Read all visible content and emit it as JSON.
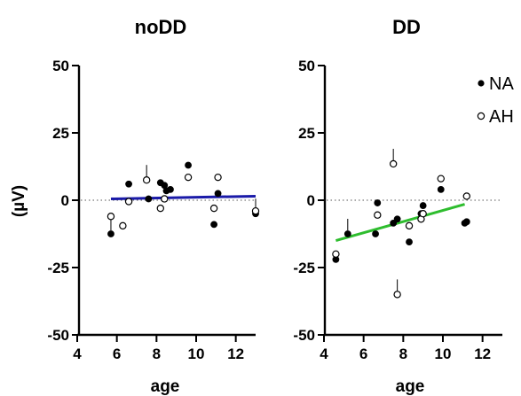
{
  "chart_data": [
    {
      "type": "scatter",
      "title": "noDD",
      "xlabel": "age",
      "ylabel": "(µV)",
      "xlim": [
        4,
        13
      ],
      "ylim": [
        -50,
        50
      ],
      "xticks": [
        4,
        6,
        8,
        10,
        12
      ],
      "yticks": [
        50,
        25,
        0,
        -25,
        -50
      ],
      "reference_line": {
        "y": 0,
        "style": "dotted"
      },
      "grid": false,
      "series": [
        {
          "name": "NA",
          "marker": "filled-circle",
          "color": "#000000",
          "points": [
            [
              5.7,
              -12.5
            ],
            [
              6.6,
              6.0
            ],
            [
              7.6,
              0.5
            ],
            [
              8.2,
              6.5
            ],
            [
              8.4,
              5.5
            ],
            [
              8.5,
              3.5
            ],
            [
              8.7,
              4.0
            ],
            [
              9.6,
              13.0
            ],
            [
              10.9,
              -9.0
            ],
            [
              11.1,
              2.5
            ],
            [
              13.0,
              -5.0
            ]
          ]
        },
        {
          "name": "AH",
          "marker": "open-circle",
          "color": "#000000",
          "points": [
            [
              5.7,
              -6.0
            ],
            [
              6.3,
              -9.5
            ],
            [
              6.6,
              -0.5
            ],
            [
              7.5,
              7.5
            ],
            [
              8.2,
              -3.0
            ],
            [
              8.4,
              0.5
            ],
            [
              9.6,
              8.5
            ],
            [
              10.9,
              -3.0
            ],
            [
              11.1,
              8.5
            ],
            [
              13.0,
              -4.0
            ]
          ]
        }
      ],
      "trendline": {
        "color": "#1a1aa8",
        "x": [
          5.7,
          13.0
        ],
        "y": [
          0.5,
          1.5
        ]
      },
      "error_ticks": [
        [
          5.7,
          -12.5
        ],
        [
          7.5,
          7.5
        ],
        [
          13.0,
          -5.0
        ]
      ]
    },
    {
      "type": "scatter",
      "title": "DD",
      "xlabel": "age",
      "ylabel": "",
      "xlim": [
        4,
        13
      ],
      "ylim": [
        -50,
        50
      ],
      "xticks": [
        4,
        6,
        8,
        10,
        12
      ],
      "yticks": [
        50,
        25,
        0,
        -25,
        -50
      ],
      "reference_line": {
        "y": 0,
        "style": "dotted"
      },
      "grid": false,
      "legend": {
        "position": "top-right",
        "entries": [
          "NA",
          "AH"
        ]
      },
      "series": [
        {
          "name": "NA",
          "marker": "filled-circle",
          "color": "#000000",
          "points": [
            [
              4.6,
              -22.0
            ],
            [
              5.2,
              -12.5
            ],
            [
              6.6,
              -12.5
            ],
            [
              6.7,
              -1.0
            ],
            [
              7.5,
              -8.5
            ],
            [
              7.7,
              -7.0
            ],
            [
              8.3,
              -15.5
            ],
            [
              8.9,
              -5.0
            ],
            [
              9.0,
              -2.0
            ],
            [
              9.9,
              4.0
            ],
            [
              11.1,
              -8.5
            ],
            [
              11.2,
              -8.0
            ]
          ]
        },
        {
          "name": "AH",
          "marker": "open-circle",
          "color": "#000000",
          "points": [
            [
              4.6,
              -20.0
            ],
            [
              6.7,
              -5.5
            ],
            [
              7.5,
              13.5
            ],
            [
              7.7,
              -35.0
            ],
            [
              8.3,
              -9.5
            ],
            [
              8.9,
              -7.0
            ],
            [
              9.0,
              -5.0
            ],
            [
              9.9,
              8.0
            ],
            [
              11.2,
              1.5
            ]
          ]
        }
      ],
      "trendline": {
        "color": "#2ebd2e",
        "x": [
          4.6,
          11.1
        ],
        "y": [
          -15.0,
          -1.5
        ]
      },
      "error_ticks": [
        [
          5.2,
          -12.5
        ],
        [
          7.5,
          13.5
        ],
        [
          7.7,
          -35.0
        ]
      ]
    }
  ]
}
